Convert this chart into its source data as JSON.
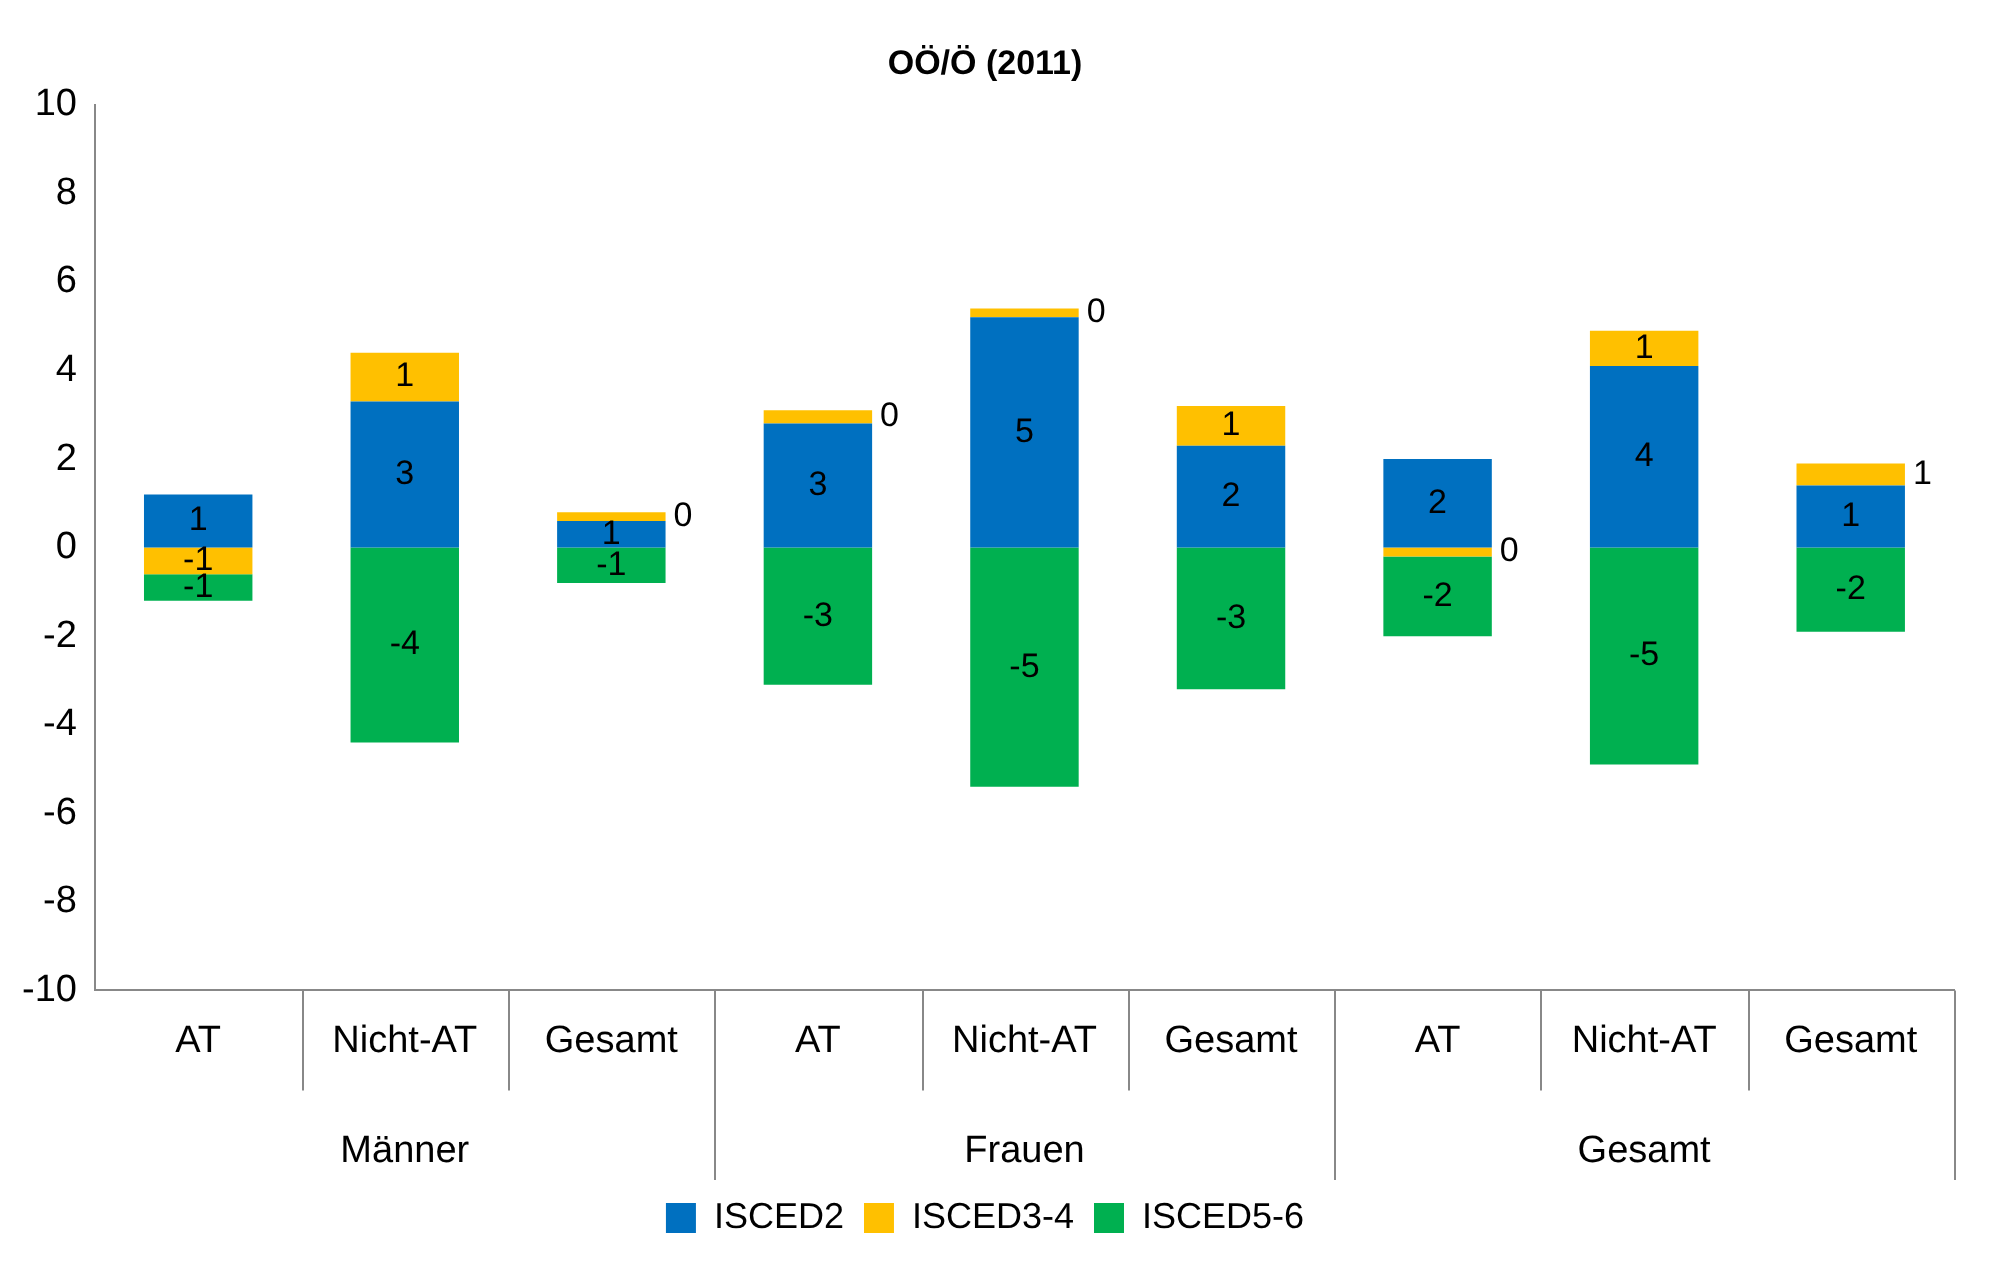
{
  "chart_data": {
    "type": "bar",
    "title": "OÖ/Ö (2011)",
    "stacked": true,
    "categories": [
      "AT",
      "Nicht-AT",
      "Gesamt",
      "AT",
      "Nicht-AT",
      "Gesamt",
      "AT",
      "Nicht-AT",
      "Gesamt"
    ],
    "annotations": [
      "Männer",
      "Frauen",
      "Gesamt"
    ],
    "series": [
      {
        "name": "ISCED2",
        "color": "#0070c0",
        "values": [
          1.2,
          3.3,
          0.6,
          2.8,
          5.2,
          2.3,
          2.0,
          4.1,
          1.4
        ],
        "value_labels": [
          "1",
          "3",
          "1",
          "3",
          "5",
          "2",
          "2",
          "4",
          "1"
        ]
      },
      {
        "name": "ISCED3-4",
        "color": "#ffc000",
        "values": [
          -0.6,
          1.1,
          0.2,
          0.3,
          0.2,
          0.9,
          -0.2,
          0.8,
          0.5
        ],
        "value_labels": [
          "-1",
          "1",
          "0",
          "0",
          "0",
          "1",
          "0",
          "1",
          "1"
        ]
      },
      {
        "name": "ISCED5-6",
        "color": "#00b050",
        "values": [
          -0.6,
          -4.4,
          -0.8,
          -3.1,
          -5.4,
          -3.2,
          -1.8,
          -4.9,
          -1.9
        ],
        "value_labels": [
          "-1",
          "-4",
          "-1",
          "-3",
          "-5",
          "-3",
          "-2",
          "-5",
          "-2"
        ]
      }
    ],
    "ylim": [
      -10,
      10
    ],
    "yticks": [
      -10,
      -8,
      -6,
      -4,
      -2,
      0,
      2,
      4,
      6,
      8,
      10
    ],
    "grid": false,
    "legend": "bottom"
  }
}
